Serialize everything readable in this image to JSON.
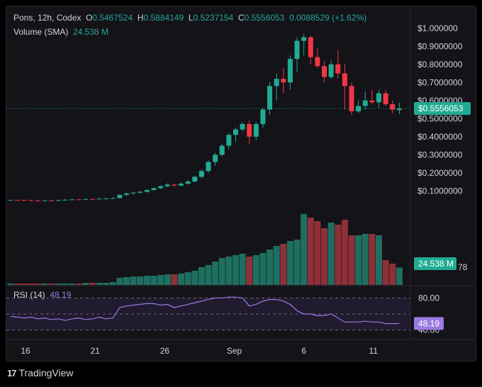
{
  "legend": {
    "symbol": "Pons, 12h, Codex",
    "o_key": "O",
    "o": "0.5467524",
    "h_key": "H",
    "h": "0.5884149",
    "l_key": "L",
    "l": "0.5237154",
    "c_key": "C",
    "c": "0.5556053",
    "change": "0.0088529 (+1.62%)",
    "volume_label": "Volume (SMA)",
    "volume_value": "24.538 M"
  },
  "rsi": {
    "label": "RSI (14)",
    "value": "48.19",
    "upper_tick": "80.00",
    "tag": "48.19",
    "lower_partial": "40.00"
  },
  "price_tag": "$0.5556053",
  "volume_tag": "24.538 M",
  "volume_extra": "78",
  "footer": {
    "brand": "TradingView",
    "logo": "17"
  },
  "colors": {
    "up": "#22ab94",
    "down": "#f23645",
    "vol_up": "#1f6f60",
    "vol_down": "#8e3038",
    "rsi": "#9a7ae0",
    "panel": "#131318"
  },
  "chart_data": {
    "type": "candlestick",
    "timeframe": "12h",
    "y_axis": {
      "ticks": [
        "$1.000000",
        "$0.9000000",
        "$0.8000000",
        "$0.7000000",
        "$0.6000000",
        "$0.5000000",
        "$0.4000000",
        "$0.3000000",
        "$0.2000000",
        "$0.1000000"
      ],
      "tick_values": [
        1.0,
        0.9,
        0.8,
        0.7,
        0.6,
        0.5,
        0.4,
        0.3,
        0.2,
        0.1
      ],
      "range": [
        -0.42,
        1.05
      ]
    },
    "x_axis": {
      "labels": [
        "16",
        "21",
        "26",
        "Sep",
        "6",
        "11"
      ],
      "label_index": [
        2.2,
        12.4,
        22.6,
        32.8,
        43.0,
        53.2
      ]
    },
    "last_price": 0.5556053,
    "candles": [
      [
        0.05,
        0.051,
        0.046,
        0.05
      ],
      [
        0.05,
        0.051,
        0.047,
        0.049
      ],
      [
        0.05,
        0.052,
        0.045,
        0.048
      ],
      [
        0.048,
        0.051,
        0.045,
        0.047
      ],
      [
        0.047,
        0.05,
        0.044,
        0.046
      ],
      [
        0.046,
        0.05,
        0.044,
        0.048
      ],
      [
        0.048,
        0.051,
        0.045,
        0.047
      ],
      [
        0.047,
        0.052,
        0.045,
        0.049
      ],
      [
        0.049,
        0.054,
        0.046,
        0.051
      ],
      [
        0.051,
        0.055,
        0.048,
        0.053
      ],
      [
        0.053,
        0.056,
        0.05,
        0.052
      ],
      [
        0.052,
        0.058,
        0.05,
        0.055
      ],
      [
        0.055,
        0.059,
        0.051,
        0.054
      ],
      [
        0.054,
        0.06,
        0.052,
        0.057
      ],
      [
        0.057,
        0.062,
        0.054,
        0.058
      ],
      [
        0.058,
        0.065,
        0.055,
        0.06
      ],
      [
        0.06,
        0.08,
        0.058,
        0.078
      ],
      [
        0.078,
        0.09,
        0.072,
        0.086
      ],
      [
        0.086,
        0.095,
        0.08,
        0.09
      ],
      [
        0.09,
        0.1,
        0.086,
        0.095
      ],
      [
        0.095,
        0.108,
        0.09,
        0.105
      ],
      [
        0.105,
        0.118,
        0.1,
        0.115
      ],
      [
        0.115,
        0.13,
        0.11,
        0.126
      ],
      [
        0.126,
        0.142,
        0.12,
        0.135
      ],
      [
        0.135,
        0.14,
        0.12,
        0.13
      ],
      [
        0.13,
        0.148,
        0.125,
        0.14
      ],
      [
        0.14,
        0.16,
        0.134,
        0.152
      ],
      [
        0.152,
        0.185,
        0.148,
        0.178
      ],
      [
        0.178,
        0.22,
        0.17,
        0.21
      ],
      [
        0.21,
        0.27,
        0.2,
        0.26
      ],
      [
        0.26,
        0.31,
        0.24,
        0.3
      ],
      [
        0.3,
        0.36,
        0.29,
        0.35
      ],
      [
        0.35,
        0.42,
        0.33,
        0.41
      ],
      [
        0.41,
        0.45,
        0.37,
        0.44
      ],
      [
        0.44,
        0.48,
        0.43,
        0.47
      ],
      [
        0.47,
        0.49,
        0.36,
        0.4
      ],
      [
        0.4,
        0.48,
        0.38,
        0.47
      ],
      [
        0.47,
        0.56,
        0.45,
        0.55
      ],
      [
        0.55,
        0.7,
        0.52,
        0.68
      ],
      [
        0.68,
        0.75,
        0.6,
        0.72
      ],
      [
        0.72,
        0.78,
        0.64,
        0.7
      ],
      [
        0.7,
        0.85,
        0.66,
        0.83
      ],
      [
        0.83,
        0.95,
        0.76,
        0.93
      ],
      [
        0.93,
        0.97,
        0.85,
        0.95
      ],
      [
        0.95,
        0.96,
        0.8,
        0.84
      ],
      [
        0.84,
        0.89,
        0.78,
        0.79
      ],
      [
        0.79,
        0.82,
        0.7,
        0.73
      ],
      [
        0.73,
        0.82,
        0.72,
        0.8
      ],
      [
        0.8,
        0.88,
        0.72,
        0.75
      ],
      [
        0.75,
        0.8,
        0.55,
        0.68
      ],
      [
        0.68,
        0.7,
        0.52,
        0.54
      ],
      [
        0.54,
        0.6,
        0.53,
        0.57
      ],
      [
        0.57,
        0.65,
        0.55,
        0.6
      ],
      [
        0.6,
        0.66,
        0.58,
        0.59
      ],
      [
        0.59,
        0.66,
        0.56,
        0.64
      ],
      [
        0.64,
        0.66,
        0.57,
        0.58
      ],
      [
        0.58,
        0.6,
        0.53,
        0.55
      ],
      [
        0.5467524,
        0.5884149,
        0.5237154,
        0.5556053
      ]
    ],
    "volume": [
      2,
      2,
      2,
      2,
      2,
      2,
      2,
      2,
      2,
      2,
      2,
      3,
      3,
      3,
      3,
      4,
      10,
      11,
      12,
      12,
      13,
      13,
      14,
      15,
      15,
      16,
      18,
      20,
      25,
      28,
      33,
      38,
      40,
      42,
      44,
      40,
      42,
      45,
      50,
      55,
      58,
      62,
      64,
      100,
      95,
      90,
      80,
      88,
      85,
      92,
      70,
      70,
      72,
      72,
      70,
      35,
      30,
      24.538
    ],
    "rsi": [
      57,
      56,
      55,
      56,
      54,
      55,
      53,
      54,
      52,
      54,
      55,
      53,
      54,
      56,
      54,
      55,
      68,
      70,
      71,
      72,
      73,
      73,
      71,
      72,
      68,
      70,
      72,
      74,
      76,
      78,
      80,
      80,
      81,
      81,
      80,
      70,
      72,
      76,
      78,
      78,
      76,
      72,
      64,
      60,
      60,
      58,
      58,
      60,
      55,
      50,
      50,
      50,
      51,
      50,
      50,
      48,
      48,
      48.19
    ],
    "rsi_range": [
      30,
      90
    ],
    "rsi_lines": [
      80,
      60,
      40
    ]
  }
}
